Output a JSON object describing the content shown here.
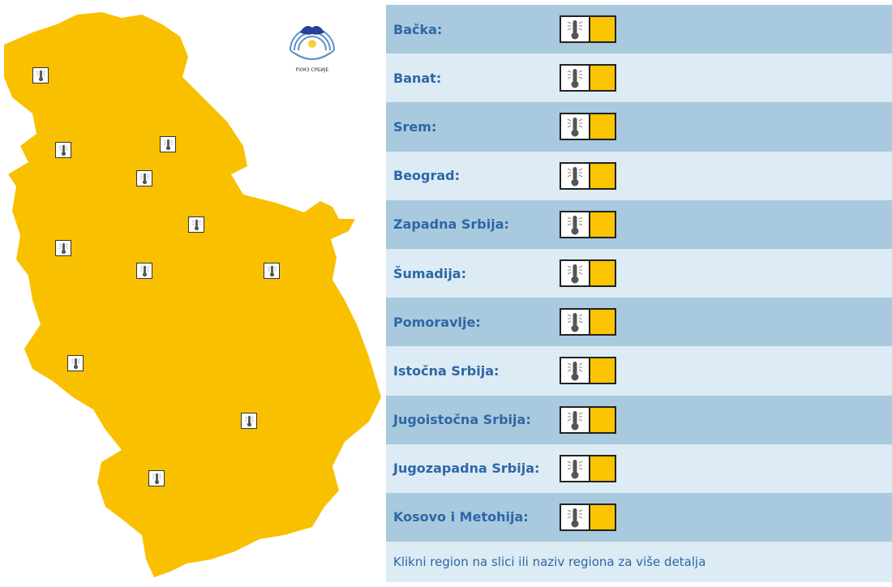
{
  "logo": {
    "text": "РХМЗ СРБИЈЕ"
  },
  "warning": {
    "level_color": "#fbc400",
    "icon": "thermometer-icon",
    "map_color": "#f9c000"
  },
  "regions": [
    {
      "label": "Bačka:"
    },
    {
      "label": "Banat:"
    },
    {
      "label": "Srem:"
    },
    {
      "label": "Beograd:"
    },
    {
      "label": "Zapadna Srbija:"
    },
    {
      "label": "Šumadija:"
    },
    {
      "label": "Pomoravlje:"
    },
    {
      "label": "Istočna Srbija:"
    },
    {
      "label": "Jugoistočna Srbija:"
    },
    {
      "label": "Jugozapadna Srbija:"
    },
    {
      "label": "Kosovo i Metohija:"
    }
  ],
  "footer": {
    "text": "Klikni region na slici ili naziv regiona za više detalja"
  }
}
